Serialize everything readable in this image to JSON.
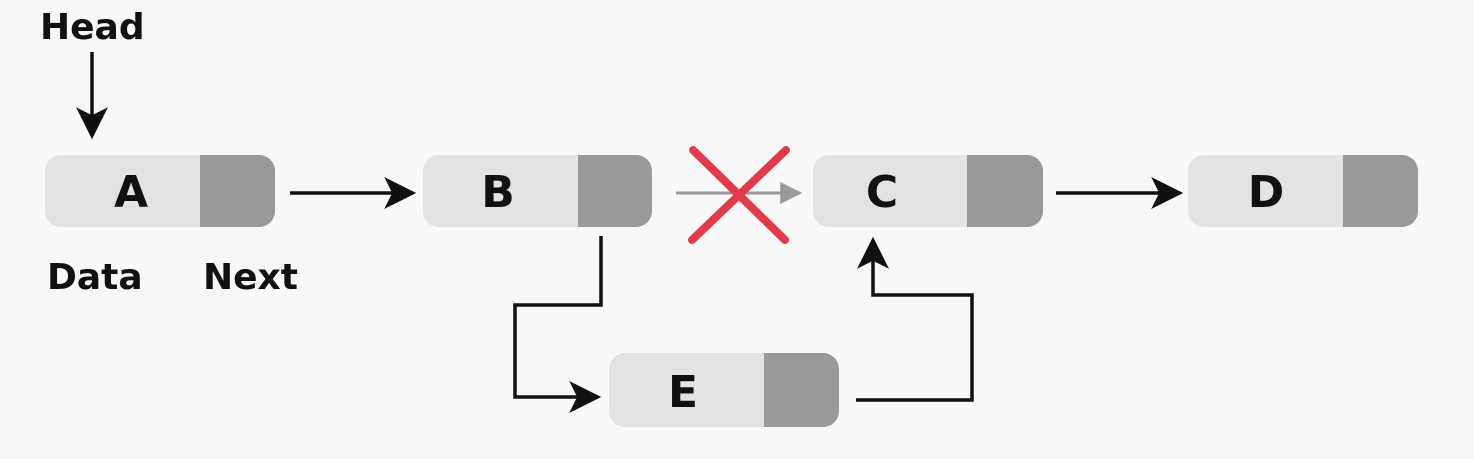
{
  "head_label": "Head",
  "data_label": "Data",
  "next_label": "Next",
  "nodes": [
    {
      "id": "A",
      "label": "A"
    },
    {
      "id": "B",
      "label": "B"
    },
    {
      "id": "C",
      "label": "C"
    },
    {
      "id": "D",
      "label": "D"
    },
    {
      "id": "E",
      "label": "E"
    }
  ],
  "edges": [
    {
      "from": "Head",
      "to": "A",
      "status": "active"
    },
    {
      "from": "A",
      "to": "B",
      "status": "active"
    },
    {
      "from": "B",
      "to": "C",
      "status": "removed"
    },
    {
      "from": "C",
      "to": "D",
      "status": "active"
    },
    {
      "from": "B",
      "to": "E",
      "status": "active"
    },
    {
      "from": "E",
      "to": "C",
      "status": "active"
    }
  ],
  "colors": {
    "background": "#f8f8f8",
    "data_cell": "#e3e3e3",
    "next_cell": "#999999",
    "arrow": "#111111",
    "removed_arrow": "#9a9a9a",
    "cross": "#e23a47"
  }
}
